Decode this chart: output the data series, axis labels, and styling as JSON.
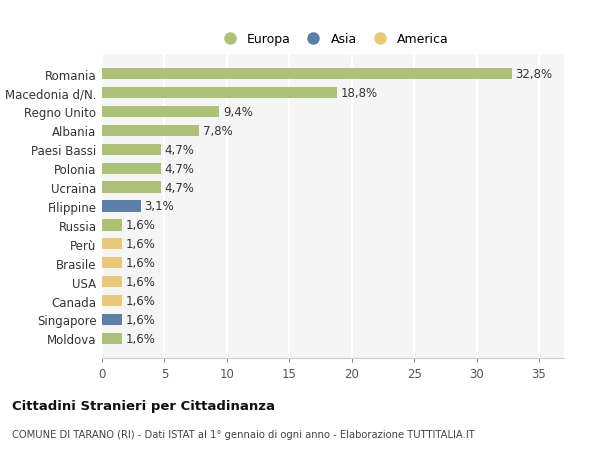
{
  "categories": [
    "Moldova",
    "Singapore",
    "Canada",
    "USA",
    "Brasile",
    "Perù",
    "Russia",
    "Filippine",
    "Ucraina",
    "Polonia",
    "Paesi Bassi",
    "Albania",
    "Regno Unito",
    "Macedonia d/N.",
    "Romania"
  ],
  "values": [
    1.6,
    1.6,
    1.6,
    1.6,
    1.6,
    1.6,
    1.6,
    3.1,
    4.7,
    4.7,
    4.7,
    7.8,
    9.4,
    18.8,
    32.8
  ],
  "labels": [
    "1,6%",
    "1,6%",
    "1,6%",
    "1,6%",
    "1,6%",
    "1,6%",
    "1,6%",
    "3,1%",
    "4,7%",
    "4,7%",
    "4,7%",
    "7,8%",
    "9,4%",
    "18,8%",
    "32,8%"
  ],
  "colors": [
    "#adc178",
    "#5b7fa6",
    "#e8c97a",
    "#e8c97a",
    "#e8c97a",
    "#e8c97a",
    "#adc178",
    "#5b7fa6",
    "#adc178",
    "#adc178",
    "#adc178",
    "#adc178",
    "#adc178",
    "#adc178",
    "#adc178"
  ],
  "legend_labels": [
    "Europa",
    "Asia",
    "America"
  ],
  "legend_colors": [
    "#adc178",
    "#5b7fa6",
    "#e8c97a"
  ],
  "title": "Cittadini Stranieri per Cittadinanza",
  "subtitle": "COMUNE DI TARANO (RI) - Dati ISTAT al 1° gennaio di ogni anno - Elaborazione TUTTITALIA.IT",
  "xlim": [
    0,
    37
  ],
  "xticks": [
    0,
    5,
    10,
    15,
    20,
    25,
    30,
    35
  ],
  "background_color": "#ffffff",
  "plot_bg_color": "#f5f5f5",
  "grid_color": "#ffffff"
}
